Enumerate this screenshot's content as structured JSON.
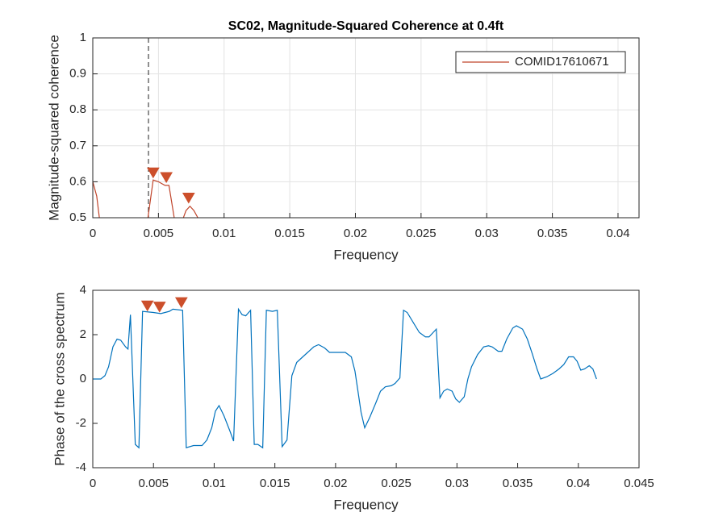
{
  "chart_data": [
    {
      "type": "line",
      "title": "SC02, Magnitude-Squared Coherence at 0.4ft",
      "xlabel": "Frequency",
      "ylabel": "Magnitude-squared coherence",
      "x": [
        0,
        0.0003,
        0.0005,
        0.002,
        0.0042,
        0.0046,
        0.005,
        0.0055,
        0.0058,
        0.0062,
        0.0065,
        0.0069,
        0.0071,
        0.0074,
        0.0077,
        0.008
      ],
      "series": [
        {
          "name": "COMID17610671",
          "color": "#c0442a",
          "values": [
            0.6,
            0.56,
            0.5,
            null,
            0.5,
            0.605,
            0.6,
            0.59,
            0.59,
            0.5,
            null,
            0.5,
            0.52,
            0.532,
            0.52,
            0.5
          ]
        }
      ],
      "peaks": {
        "color": "#cc4f2b",
        "x": [
          0.0046,
          0.0056,
          0.0073
        ],
        "values": [
          0.625,
          0.612,
          0.555
        ]
      },
      "vline": 0.00424,
      "xlim": [
        0,
        0.0416
      ],
      "xticks": [
        0,
        0.005,
        0.01,
        0.015,
        0.02,
        0.025,
        0.03,
        0.035,
        0.04
      ],
      "ylim": [
        0.5,
        1
      ],
      "yticks": [
        0.5,
        0.6,
        0.7,
        0.8,
        0.9,
        1
      ],
      "grid": true,
      "legend": "upper right"
    },
    {
      "type": "line",
      "xlabel": "Frequency",
      "ylabel": "Phase of the cross spectrum",
      "x": [
        0,
        0.00066,
        0.001,
        0.0013,
        0.00166,
        0.002,
        0.0023,
        0.0027,
        0.0029,
        0.0031,
        0.0035,
        0.0038,
        0.0041,
        0.005,
        0.0056,
        0.0063,
        0.0066,
        0.0074,
        0.0077,
        0.0083,
        0.009,
        0.0094,
        0.0098,
        0.0101,
        0.0104,
        0.0108,
        0.0113,
        0.0116,
        0.012,
        0.0123,
        0.0126,
        0.013,
        0.0133,
        0.0136,
        0.014,
        0.0143,
        0.0148,
        0.0152,
        0.0156,
        0.016,
        0.0164,
        0.0168,
        0.0173,
        0.0177,
        0.0182,
        0.0186,
        0.0191,
        0.0195,
        0.0203,
        0.0208,
        0.0213,
        0.0216,
        0.0219,
        0.0221,
        0.0224,
        0.0228,
        0.0233,
        0.0237,
        0.0241,
        0.0246,
        0.0249,
        0.0253,
        0.0256,
        0.0259,
        0.0264,
        0.0269,
        0.0274,
        0.0277,
        0.0283,
        0.0286,
        0.0289,
        0.0292,
        0.0296,
        0.0299,
        0.0302,
        0.0306,
        0.0309,
        0.0312,
        0.0317,
        0.0322,
        0.0326,
        0.0329,
        0.0334,
        0.0337,
        0.0341,
        0.0346,
        0.0349,
        0.0354,
        0.0358,
        0.0362,
        0.0366,
        0.0369,
        0.0374,
        0.0379,
        0.0384,
        0.0388,
        0.0392,
        0.0396,
        0.0399,
        0.0402,
        0.0405,
        0.0409,
        0.0412,
        0.0415
      ],
      "series": [
        {
          "color": "#0072bd",
          "values": [
            0,
            0,
            0.15,
            0.55,
            1.45,
            1.8,
            1.75,
            1.45,
            1.35,
            2.9,
            -2.95,
            -3.1,
            3.05,
            3.0,
            2.95,
            3.05,
            3.15,
            3.1,
            -3.1,
            -3.0,
            -3.0,
            -2.75,
            -2.2,
            -1.45,
            -1.2,
            -1.65,
            -2.35,
            -2.8,
            3.15,
            2.9,
            2.85,
            3.1,
            -2.95,
            -2.95,
            -3.1,
            3.1,
            3.05,
            3.1,
            -3.05,
            -2.75,
            0.15,
            0.75,
            1.0,
            1.2,
            1.45,
            1.55,
            1.4,
            1.2,
            1.2,
            1.2,
            1.0,
            0.35,
            -0.75,
            -1.5,
            -2.2,
            -1.75,
            -1.1,
            -0.55,
            -0.35,
            -0.3,
            -0.2,
            0.05,
            3.1,
            3.0,
            2.55,
            2.1,
            1.9,
            1.9,
            2.25,
            -0.85,
            -0.55,
            -0.45,
            -0.55,
            -0.9,
            -1.05,
            -0.8,
            0,
            0.55,
            1.1,
            1.45,
            1.5,
            1.45,
            1.25,
            1.25,
            1.8,
            2.3,
            2.4,
            2.25,
            1.8,
            1.15,
            0.45,
            0,
            0.1,
            0.25,
            0.45,
            0.65,
            1.0,
            1.0,
            0.8,
            0.4,
            0.45,
            0.6,
            0.45,
            0
          ]
        }
      ],
      "peaks": {
        "color": "#cc4f2b",
        "x": [
          0.0045,
          0.0055,
          0.0073
        ],
        "values": [
          3.3,
          3.25,
          3.45
        ]
      },
      "xlim": [
        0,
        0.045
      ],
      "xticks": [
        0,
        0.005,
        0.01,
        0.015,
        0.02,
        0.025,
        0.03,
        0.035,
        0.04,
        0.045
      ],
      "ylim": [
        -4,
        4
      ],
      "yticks": [
        -4,
        -2,
        0,
        2,
        4
      ],
      "grid": false
    }
  ]
}
